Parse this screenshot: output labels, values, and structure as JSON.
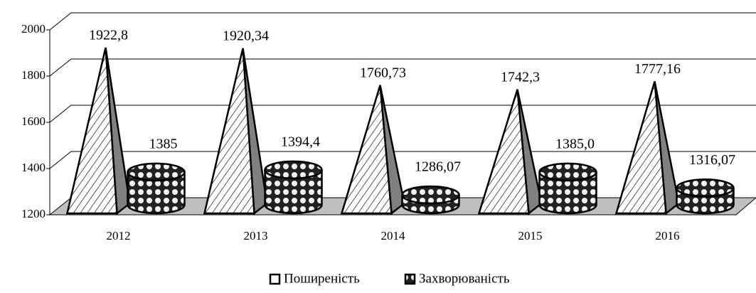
{
  "chart_data": {
    "type": "pyramid-cylinder-3d",
    "categories": [
      "2012",
      "2013",
      "2014",
      "2015",
      "2016"
    ],
    "series": [
      {
        "name": "Поширеність",
        "color": "#ffffff",
        "values": [
          1922.8,
          1920.34,
          1760.73,
          1742.3,
          1777.16
        ],
        "value_labels": [
          "1922,8",
          "1920,34",
          "1760,73",
          "1742,3",
          "1777,16"
        ]
      },
      {
        "name": "Захворюваність",
        "color": "#000000",
        "values": [
          1385,
          1394.4,
          1286.07,
          1385.0,
          1316.07
        ],
        "value_labels": [
          "1385",
          "1394,4",
          "1286,07",
          "1385,0",
          "1316,07"
        ]
      }
    ],
    "ylim": [
      1200,
      2000
    ],
    "yticks": [
      1200,
      1400,
      1600,
      1800,
      2000
    ],
    "grid": true,
    "legend": "bottom"
  }
}
